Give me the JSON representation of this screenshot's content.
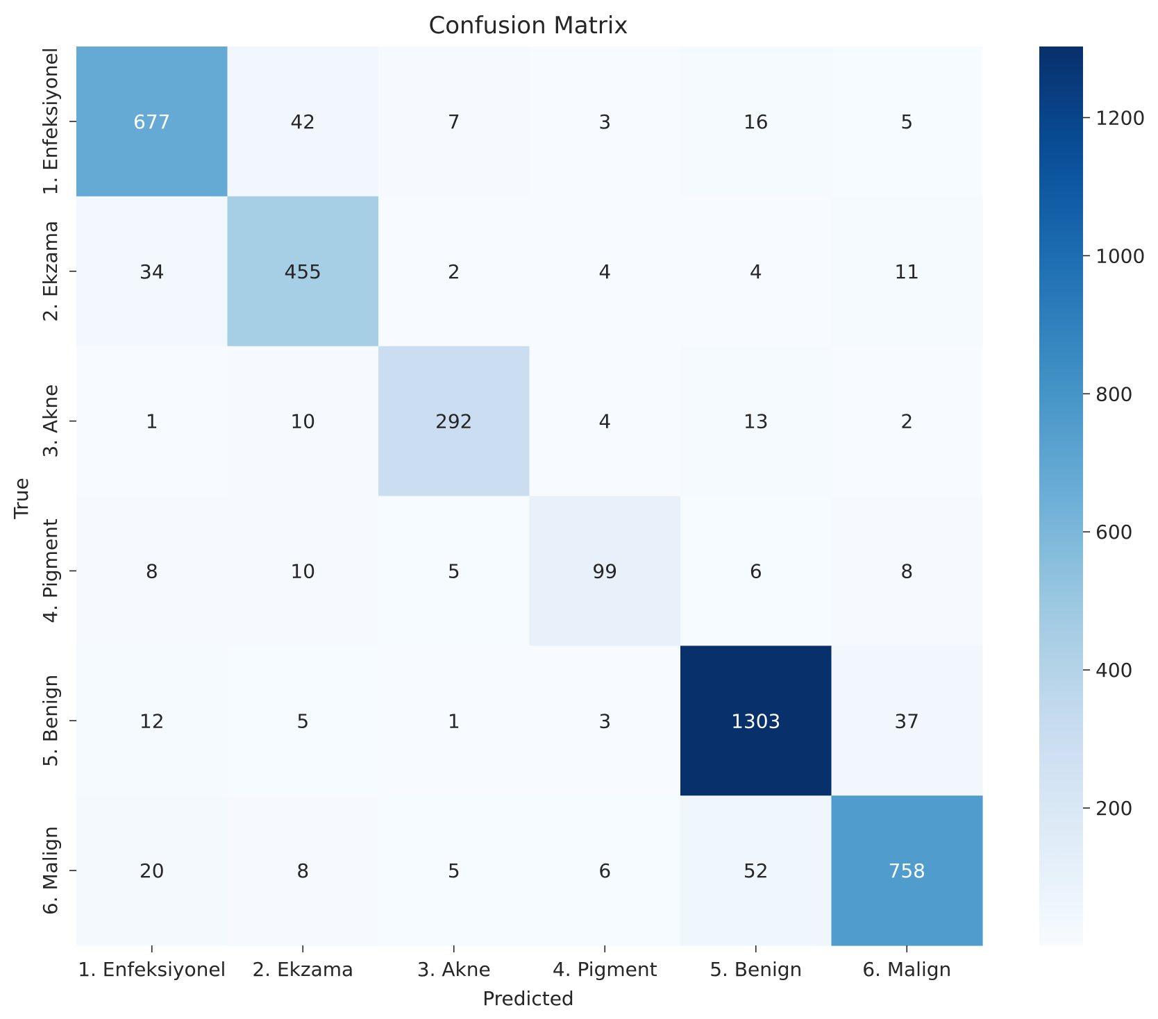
{
  "chart_data": {
    "type": "heatmap",
    "title": "Confusion Matrix",
    "xlabel": "Predicted",
    "ylabel": "True",
    "x_categories": [
      "1. Enfeksiyonel",
      "2. Ekzama",
      "3. Akne",
      "4. Pigment",
      "5. Benign",
      "6. Malign"
    ],
    "y_categories": [
      "1. Enfeksiyonel",
      "2. Ekzama",
      "3. Akne",
      "4. Pigment",
      "5. Benign",
      "6. Malign"
    ],
    "values": [
      [
        677,
        42,
        7,
        3,
        16,
        5
      ],
      [
        34,
        455,
        2,
        4,
        4,
        11
      ],
      [
        1,
        10,
        292,
        4,
        13,
        2
      ],
      [
        8,
        10,
        5,
        99,
        6,
        8
      ],
      [
        12,
        5,
        1,
        3,
        1303,
        37
      ],
      [
        20,
        8,
        5,
        6,
        52,
        758
      ]
    ],
    "colormap": "Blues",
    "colorbar": {
      "min": 1,
      "max": 1303,
      "ticks": [
        200,
        400,
        600,
        800,
        1000,
        1200
      ]
    },
    "colors": {
      "low": "#f7fbff",
      "high": "#08306b",
      "text_dark": "#262626",
      "text_light": "#ffffff"
    }
  }
}
